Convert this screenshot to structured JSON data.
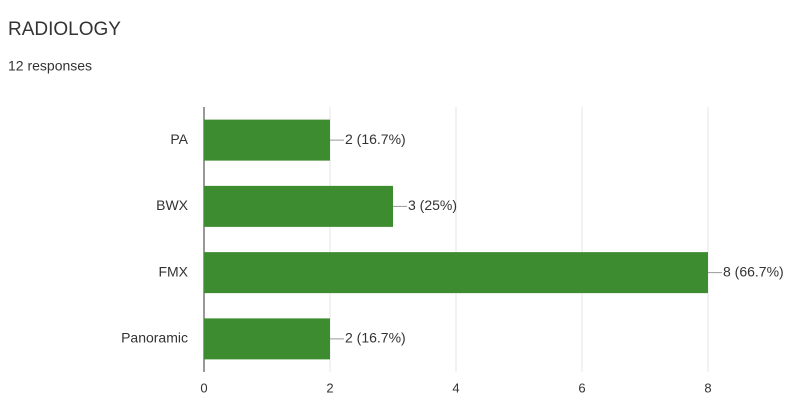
{
  "chart_data": {
    "type": "hbar",
    "title": "RADIOLOGY",
    "subtitle": "12 responses",
    "categories": [
      "PA",
      "BWX",
      "FMX",
      "Panoramic"
    ],
    "values": [
      2,
      3,
      8,
      2
    ],
    "value_labels": [
      "2 (16.7%)",
      "3 (25%)",
      "8 (66.7%)",
      "2 (16.7%)"
    ],
    "color": "#3d8c2f",
    "xlim": [
      0,
      8
    ],
    "xticks": [
      0,
      2,
      4,
      6,
      8
    ],
    "grid": true
  }
}
